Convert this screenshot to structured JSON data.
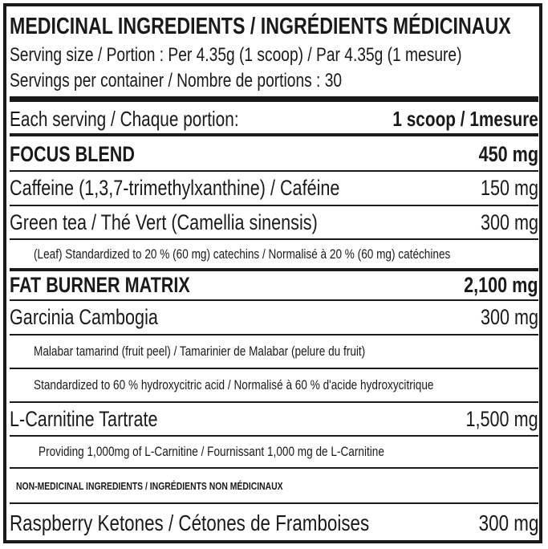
{
  "header": {
    "title": "MEDICINAL INGREDIENTS / INGRÉDIENTS MÉDICINAUX",
    "serving_size": "Serving size / Portion : Per 4.35g (1 scoop) / Par 4.35g (1 mesure)",
    "servings_per_container": "Servings per container / Nombre de portions : 30"
  },
  "each_serving": {
    "label": "Each serving / Chaque portion:",
    "value": "1 scoop / 1mesure"
  },
  "focus_blend": {
    "name": "FOCUS BLEND",
    "amount": "450 mg"
  },
  "caffeine": {
    "name": "Caffeine (1,3,7-trimethylxanthine) / Caféine",
    "amount": "150 mg"
  },
  "green_tea": {
    "name": "Green tea / Thé Vert (Camellia sinensis)",
    "amount": "300 mg"
  },
  "green_tea_note": "(Leaf) Standardized to 20 % (60 mg) catechins / Normalisé à 20 % (60 mg) catéchines",
  "fat_burner": {
    "name": "FAT BURNER MATRIX",
    "amount": "2,100 mg"
  },
  "garcinia": {
    "name": "Garcinia Cambogia",
    "amount": "300 mg"
  },
  "garcinia_note1": "Malabar tamarind (fruit peel) / Tamarinier de Malabar (pelure du fruit)",
  "garcinia_note2": "Standardized to 60 % hydroxycitric acid / Normalisé à 60 % d'acide hydroxycitrique",
  "carnitine": {
    "name": "L-Carnitine Tartrate",
    "amount": "1,500 mg"
  },
  "carnitine_note": "Providing 1,000mg of L-Carnitine / Fournissant 1,000 mg de L-Carnitine",
  "non_medicinal": "NON-MEDICINAL INGREDIENTS / INGRÉDIENTS NON MÉDICINAUX",
  "raspberry": {
    "name": "Raspberry Ketones / Cétones de Framboises",
    "amount": "300 mg"
  }
}
